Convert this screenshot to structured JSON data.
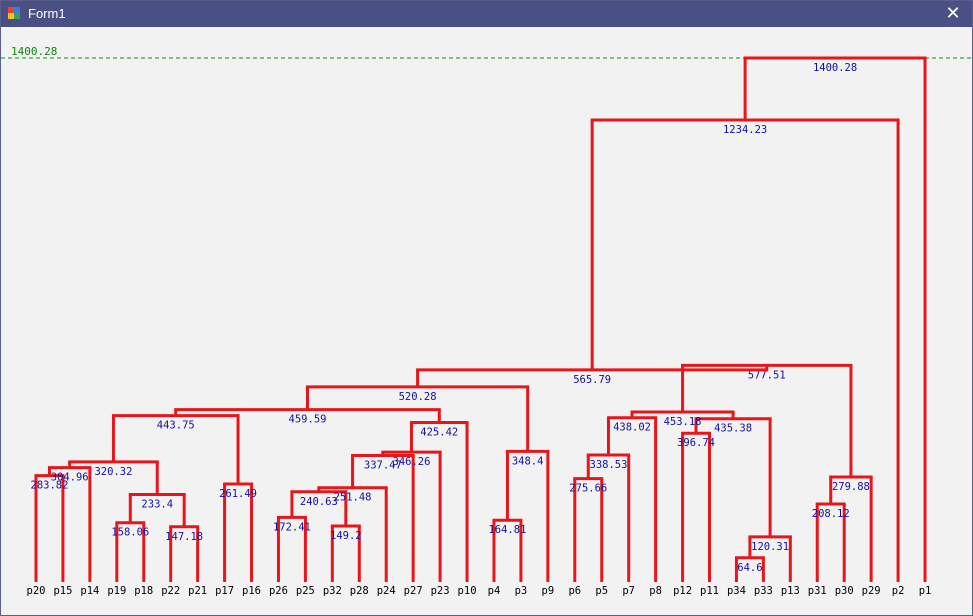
{
  "window": {
    "title": "Form1",
    "close_glyph": "✕",
    "icon": "winforms-app-icon",
    "icon_colors": [
      "#e8412c",
      "#3a7be0",
      "#f3c12a",
      "#35a845"
    ]
  },
  "threshold": {
    "label": "1400.28",
    "color": "#1a8a1a"
  },
  "colors": {
    "branch": "#e8161a",
    "merge_label": "#1010a0",
    "leaf_label": "#000000"
  },
  "leaves": [
    "p20",
    "p15",
    "p14",
    "p19",
    "p18",
    "p22",
    "p21",
    "p17",
    "p16",
    "p26",
    "p25",
    "p32",
    "p28",
    "p24",
    "p27",
    "p23",
    "p10",
    "p4",
    "p3",
    "p9",
    "p6",
    "p5",
    "p7",
    "p8",
    "p12",
    "p11",
    "p34",
    "p33",
    "p13",
    "p31",
    "p30",
    "p29",
    "p2",
    "p1"
  ],
  "merges": [
    {
      "a": "p20",
      "b": "p15",
      "h": 283.82,
      "label": "283.82"
    },
    {
      "a": "m0",
      "b": "p14",
      "h": 304.96,
      "label": "304.96"
    },
    {
      "a": "p19",
      "b": "p18",
      "h": 158.06,
      "label": "158.06"
    },
    {
      "a": "p22",
      "b": "p21",
      "h": 147.18,
      "label": "147.18"
    },
    {
      "a": "m2",
      "b": "m3",
      "h": 233.4,
      "label": "233.4"
    },
    {
      "a": "m1",
      "b": "m4",
      "h": 320.32,
      "label": "320.32"
    },
    {
      "a": "p17",
      "b": "p16",
      "h": 261.49,
      "label": "261.49"
    },
    {
      "a": "m5",
      "b": "m6",
      "h": 443.75,
      "label": "443.75"
    },
    {
      "a": "p26",
      "b": "p25",
      "h": 172.41,
      "label": "172.41"
    },
    {
      "a": "p32",
      "b": "p28",
      "h": 149.2,
      "label": "149.2"
    },
    {
      "a": "m8",
      "b": "m9",
      "h": 240.63,
      "label": "240.63"
    },
    {
      "a": "m10",
      "b": "p24",
      "h": 251.48,
      "label": "251.48"
    },
    {
      "a": "m11",
      "b": "p27",
      "h": 337.47,
      "label": "337.47"
    },
    {
      "a": "m12",
      "b": "p23",
      "h": 346.26,
      "label": "346.26"
    },
    {
      "a": "m13",
      "b": "p10",
      "h": 425.42,
      "label": "425.42"
    },
    {
      "a": "m7",
      "b": "m14",
      "h": 459.59,
      "label": "459.59"
    },
    {
      "a": "p4",
      "b": "p3",
      "h": 164.81,
      "label": "164.81"
    },
    {
      "a": "m16",
      "b": "p9",
      "h": 348.4,
      "label": "348.4"
    },
    {
      "a": "m15",
      "b": "m17",
      "h": 520.28,
      "label": "520.28"
    },
    {
      "a": "p6",
      "b": "p5",
      "h": 275.66,
      "label": "275.66"
    },
    {
      "a": "m19",
      "b": "p7",
      "h": 338.53,
      "label": "338.53"
    },
    {
      "a": "m20",
      "b": "p8",
      "h": 438.02,
      "label": "438.02"
    },
    {
      "a": "p12",
      "b": "p11",
      "h": 396.74,
      "label": "396.74"
    },
    {
      "a": "p34",
      "b": "p33",
      "h": 64.6,
      "label": "64.6"
    },
    {
      "a": "m23",
      "b": "p13",
      "h": 120.31,
      "label": "120.31"
    },
    {
      "a": "m22",
      "b": "m24",
      "h": 435.38,
      "label": "435.38"
    },
    {
      "a": "m21",
      "b": "m25",
      "h": 453.18,
      "label": "453.18"
    },
    {
      "a": "p31",
      "b": "p30",
      "h": 208.12,
      "label": "208.12"
    },
    {
      "a": "m27",
      "b": "p29",
      "h": 279.88,
      "label": "279.88"
    },
    {
      "a": "m26",
      "b": "m28",
      "h": 577.51,
      "label": "577.51"
    },
    {
      "a": "m18",
      "b": "m29",
      "h": 565.79,
      "label": "565.79"
    },
    {
      "a": "m30",
      "b": "p2",
      "h": 1234.23,
      "label": "1234.23"
    },
    {
      "a": "m31",
      "b": "p1",
      "h": 1400.28,
      "label": "1400.28"
    }
  ]
}
